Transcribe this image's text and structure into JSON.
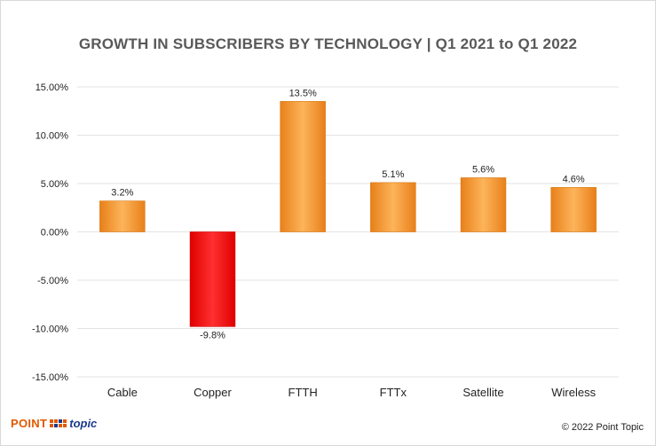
{
  "chart_data": {
    "type": "bar",
    "title": "GROWTH IN SUBSCRIBERS BY TECHNOLOGY | Q1 2021 to Q1 2022",
    "categories": [
      "Cable",
      "Copper",
      "FTTH",
      "FTTx",
      "Satellite",
      "Wireless"
    ],
    "values": [
      3.2,
      -9.8,
      13.5,
      5.1,
      5.6,
      4.6
    ],
    "data_labels": [
      "3.2%",
      "-9.8%",
      "13.5%",
      "5.1%",
      "5.6%",
      "4.6%"
    ],
    "ylim": [
      -15,
      15
    ],
    "yticks": [
      15,
      10,
      5,
      0,
      -5,
      -10,
      -15
    ],
    "ytick_labels": [
      "15.00%",
      "10.00%",
      "5.00%",
      "0.00%",
      "-5.00%",
      "-10.00%",
      "-15.00%"
    ],
    "xlabel": "",
    "ylabel": "",
    "grid": true,
    "colors": {
      "positive": "#f5a23c",
      "negative": "#ff1a1a",
      "grid": "#e3e3e3",
      "text": "#222222"
    }
  },
  "footer": {
    "logo_point": "POINT",
    "logo_topic": "topic",
    "copyright": "© 2022 Point Topic"
  }
}
